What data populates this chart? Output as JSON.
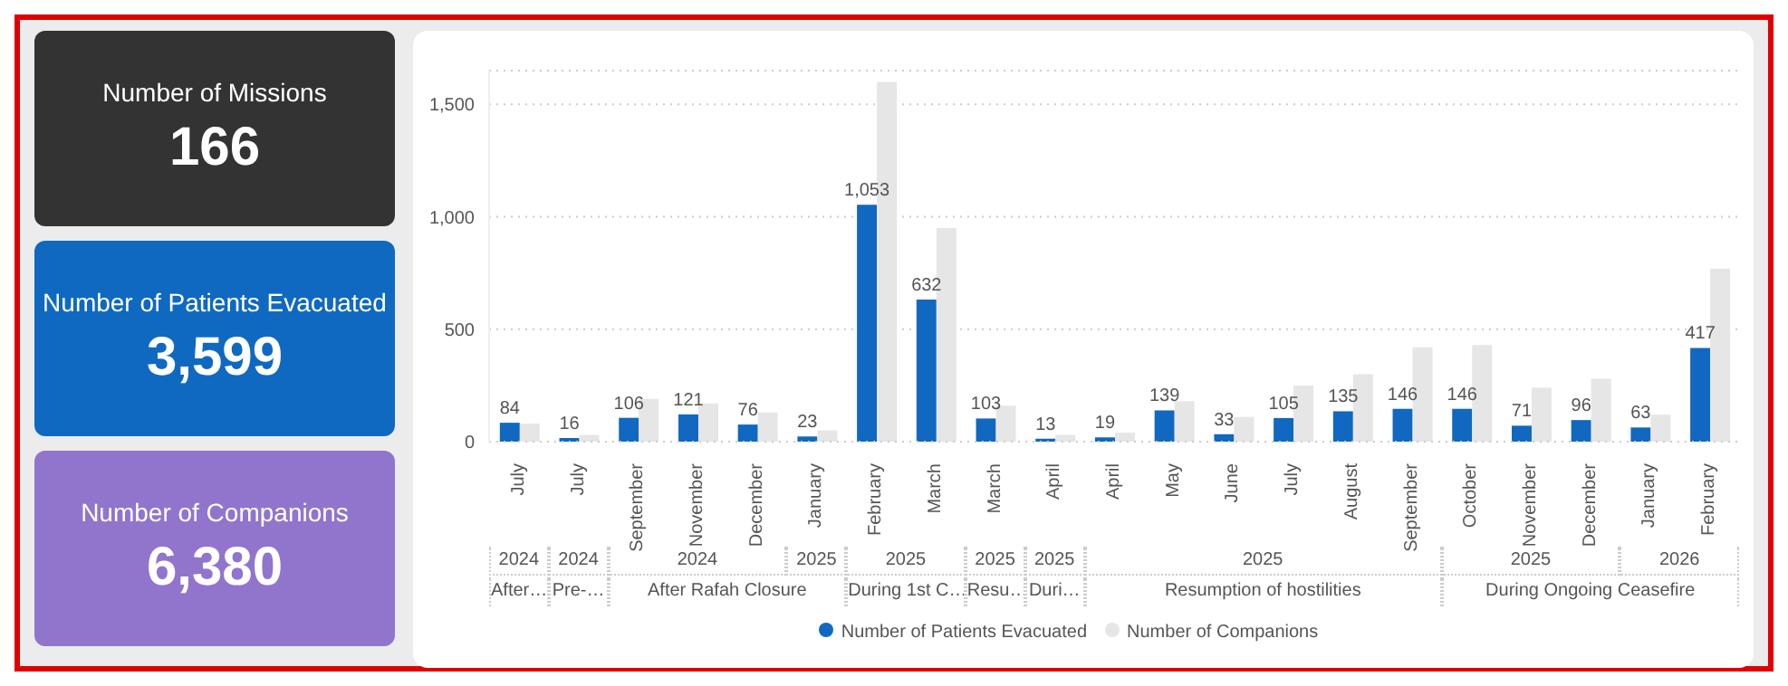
{
  "chart_data": [
    {
      "type": "other",
      "title": "Number of Missions",
      "annotations": [
        "166"
      ],
      "color": "#333333"
    },
    {
      "type": "other",
      "title": "Number of Patients Evacuated",
      "annotations": [
        "3,599"
      ],
      "color": "#0f69c1"
    },
    {
      "type": "other",
      "title": "Number of Companions",
      "annotations": [
        "6,380"
      ],
      "color": "#9175cd"
    },
    {
      "type": "bar",
      "categories": [
        "July",
        "July",
        "September",
        "November",
        "December",
        "January",
        "February",
        "March",
        "March",
        "April",
        "April",
        "May",
        "June",
        "July",
        "August",
        "September",
        "October",
        "November",
        "December",
        "January",
        "February"
      ],
      "series": [
        {
          "name": "Number of Patients Evacuated",
          "color": "#1068c0",
          "values": [
            84,
            16,
            106,
            121,
            76,
            23,
            1053,
            632,
            103,
            13,
            19,
            139,
            33,
            105,
            135,
            146,
            146,
            71,
            96,
            63,
            417
          ],
          "value_labels": [
            "84",
            "16",
            "106",
            "121",
            "76",
            "23",
            "1,053",
            "632",
            "103",
            "13",
            "19",
            "139",
            "33",
            "105",
            "135",
            "146",
            "146",
            "71",
            "96",
            "63",
            "417"
          ]
        },
        {
          "name": "Number of Companions",
          "color": "#e6e6e6",
          "values": [
            80,
            30,
            190,
            170,
            130,
            50,
            1600,
            950,
            160,
            30,
            40,
            180,
            110,
            250,
            300,
            420,
            430,
            240,
            280,
            120,
            770
          ]
        }
      ],
      "ylim": [
        0,
        1650
      ],
      "yticks": [
        0,
        500,
        {
          "value": 1000,
          "label": "1,000"
        },
        {
          "value": 1500,
          "label": "1,500"
        }
      ],
      "grid": "y",
      "legend": "bottom",
      "annotations": [
        "2024",
        "2024",
        "2024",
        "2025",
        "2025",
        "2025",
        "2025",
        "2025",
        "2025",
        "2026",
        "After…",
        "Pre-…",
        "After Rafah Closure",
        "During 1st C…",
        "Resu…",
        "Duri…",
        "Resumption of hostilities",
        "During Ongoing Ceasefire"
      ]
    }
  ]
}
